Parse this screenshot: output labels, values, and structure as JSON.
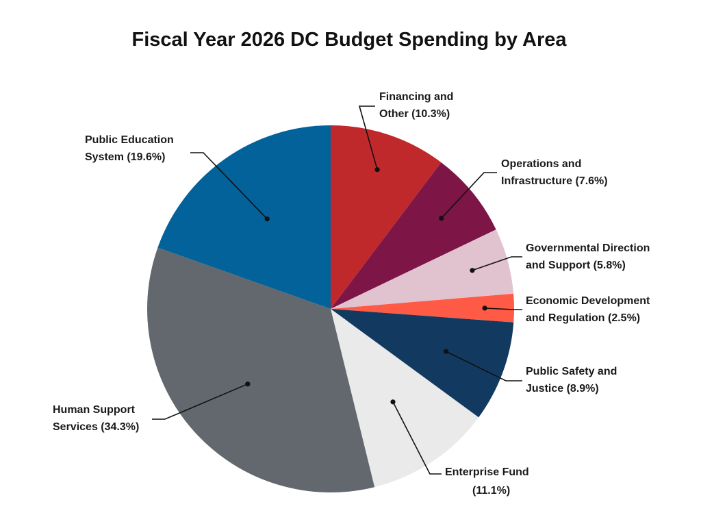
{
  "chart_data": {
    "type": "pie",
    "title": "Fiscal Year 2026 DC Budget Spending by Area",
    "slices": [
      {
        "label_lines": [
          "Financing and",
          "Other (10.3%)"
        ],
        "value": 10.3,
        "color": "#C0292B"
      },
      {
        "label_lines": [
          "Operations and",
          "Infrastructure (7.6%)"
        ],
        "value": 7.6,
        "color": "#7D1547"
      },
      {
        "label_lines": [
          "Governmental Direction",
          "and Support (5.8%)"
        ],
        "value": 5.8,
        "color": "#E0C3CF"
      },
      {
        "label_lines": [
          "Economic Development",
          "and Regulation (2.5%)"
        ],
        "value": 2.5,
        "color": "#FF5A45"
      },
      {
        "label_lines": [
          "Public Safety and",
          "Justice (8.9%)"
        ],
        "value": 8.9,
        "color": "#123A60"
      },
      {
        "label_lines": [
          "Enterprise Fund",
          "(11.1%)"
        ],
        "value": 11.1,
        "color": "#EAEAEA"
      },
      {
        "label_lines": [
          "Human Support",
          "Services (34.3%)"
        ],
        "value": 34.3,
        "color": "#62686E"
      },
      {
        "label_lines": [
          "Public Education",
          "System (19.6%)"
        ],
        "value": 19.6,
        "color": "#03629A"
      }
    ],
    "start_angle_deg": 0,
    "direction": "clockwise",
    "legend": "none"
  }
}
